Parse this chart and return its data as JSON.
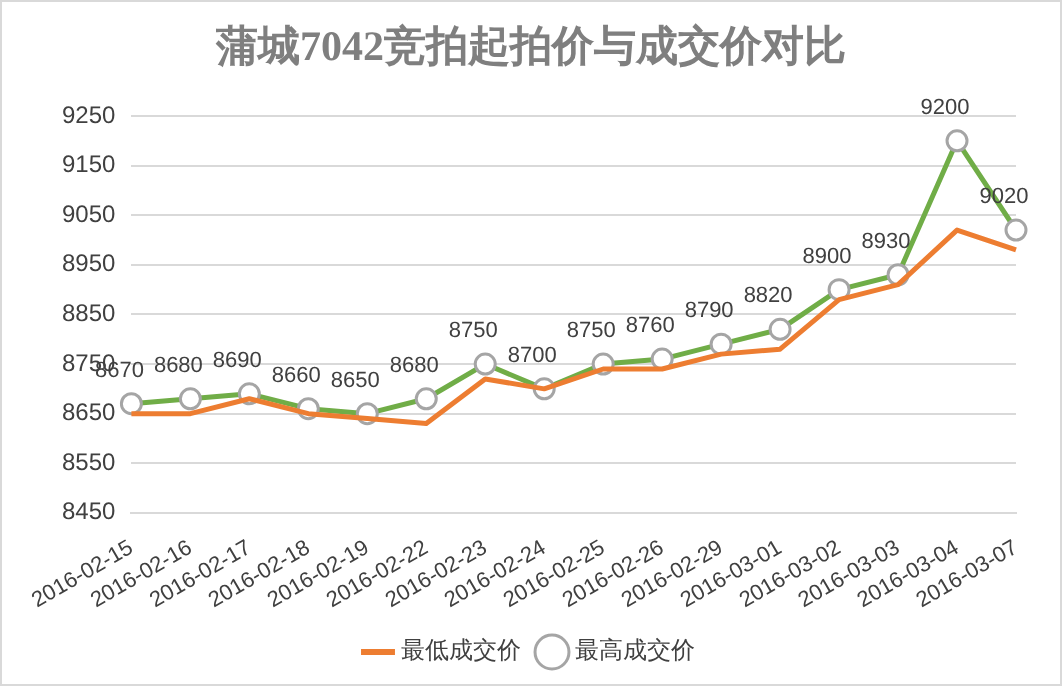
{
  "chart_data": {
    "type": "line",
    "title": "蒲城7042竞拍起拍价与成交价对比",
    "categories": [
      "2016-02-15",
      "2016-02-16",
      "2016-02-17",
      "2016-02-18",
      "2016-02-19",
      "2016-02-22",
      "2016-02-23",
      "2016-02-24",
      "2016-02-25",
      "2016-02-26",
      "2016-02-29",
      "2016-03-01",
      "2016-03-02",
      "2016-03-03",
      "2016-03-04",
      "2016-03-07"
    ],
    "series": [
      {
        "name": "最低成交价",
        "color": "#ed7d31",
        "marker": "none",
        "values": [
          8650,
          8650,
          8680,
          8650,
          8640,
          8630,
          8720,
          8700,
          8740,
          8740,
          8770,
          8780,
          8880,
          8910,
          9020,
          8980
        ]
      },
      {
        "name": "最高成交价",
        "color": "#70ad47",
        "marker": "circle",
        "values": [
          8670,
          8680,
          8690,
          8660,
          8650,
          8680,
          8750,
          8700,
          8750,
          8760,
          8790,
          8820,
          8900,
          8930,
          9200,
          9020
        ],
        "value_labels": [
          "8670",
          "8680",
          "8690",
          "8660",
          "8650",
          "8680",
          "8750",
          "8700",
          "8750",
          "8760",
          "8790",
          "8820",
          "8900",
          "8930",
          "9200",
          "9020"
        ]
      }
    ],
    "ylim": [
      8450,
      9250
    ],
    "yticks": [
      8450,
      8550,
      8650,
      8750,
      8850,
      8950,
      9050,
      9150,
      9250
    ],
    "grid": "y",
    "legend": "bottom"
  }
}
